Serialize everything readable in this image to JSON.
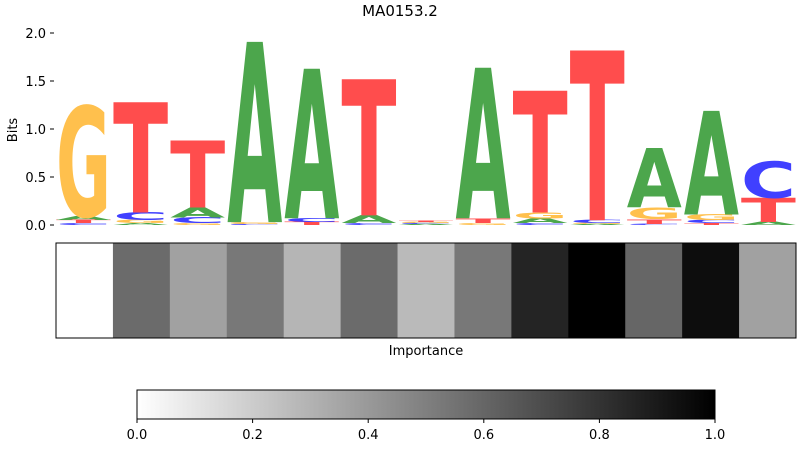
{
  "chart_data": [
    {
      "type": "sequence-logo",
      "title": "MA0153.2",
      "ylabel": "Bits",
      "ylim": [
        0,
        2.0
      ],
      "yticks": [
        "0.0",
        "0.5",
        "1.0",
        "1.5",
        "2.0"
      ],
      "base_colors": {
        "A": "#4ca64c",
        "C": "#4040ff",
        "G": "#ffc04d",
        "T": "#ff4d4d"
      },
      "positions": [
        {
          "A": 0.04,
          "C": 0.02,
          "G": 1.15,
          "T": 0.03
        },
        {
          "A": 0.02,
          "C": 0.08,
          "G": 0.03,
          "T": 1.15
        },
        {
          "A": 0.1,
          "C": 0.06,
          "G": 0.02,
          "T": 0.7
        },
        {
          "A": 1.88,
          "C": 0.01,
          "G": 0.02,
          "T": 0.0
        },
        {
          "A": 1.56,
          "C": 0.04,
          "G": 0.0,
          "T": 0.03
        },
        {
          "A": 0.08,
          "C": 0.02,
          "G": 0.0,
          "T": 1.42
        },
        {
          "A": 0.01,
          "C": 0.01,
          "G": 0.01,
          "T": 0.01
        },
        {
          "A": 1.57,
          "C": 0.0,
          "G": 0.02,
          "T": 0.05
        },
        {
          "A": 0.05,
          "C": 0.02,
          "G": 0.06,
          "T": 1.27
        },
        {
          "A": 0.01,
          "C": 0.03,
          "G": 0.01,
          "T": 1.77
        },
        {
          "A": 0.62,
          "C": 0.01,
          "G": 0.12,
          "T": 0.05
        },
        {
          "A": 1.08,
          "C": 0.03,
          "G": 0.06,
          "T": 0.02
        },
        {
          "A": 0.03,
          "C": 0.38,
          "G": 0.0,
          "T": 0.25
        }
      ]
    },
    {
      "type": "heatmap",
      "xlabel": "Importance",
      "values": [
        0.0,
        0.58,
        0.37,
        0.53,
        0.29,
        0.58,
        0.27,
        0.53,
        0.86,
        1.0,
        0.6,
        0.95,
        0.37
      ]
    },
    {
      "type": "colorbar",
      "range": [
        0.0,
        1.0
      ],
      "ticks": [
        "0.0",
        "0.2",
        "0.4",
        "0.6",
        "0.8",
        "1.0"
      ]
    }
  ]
}
